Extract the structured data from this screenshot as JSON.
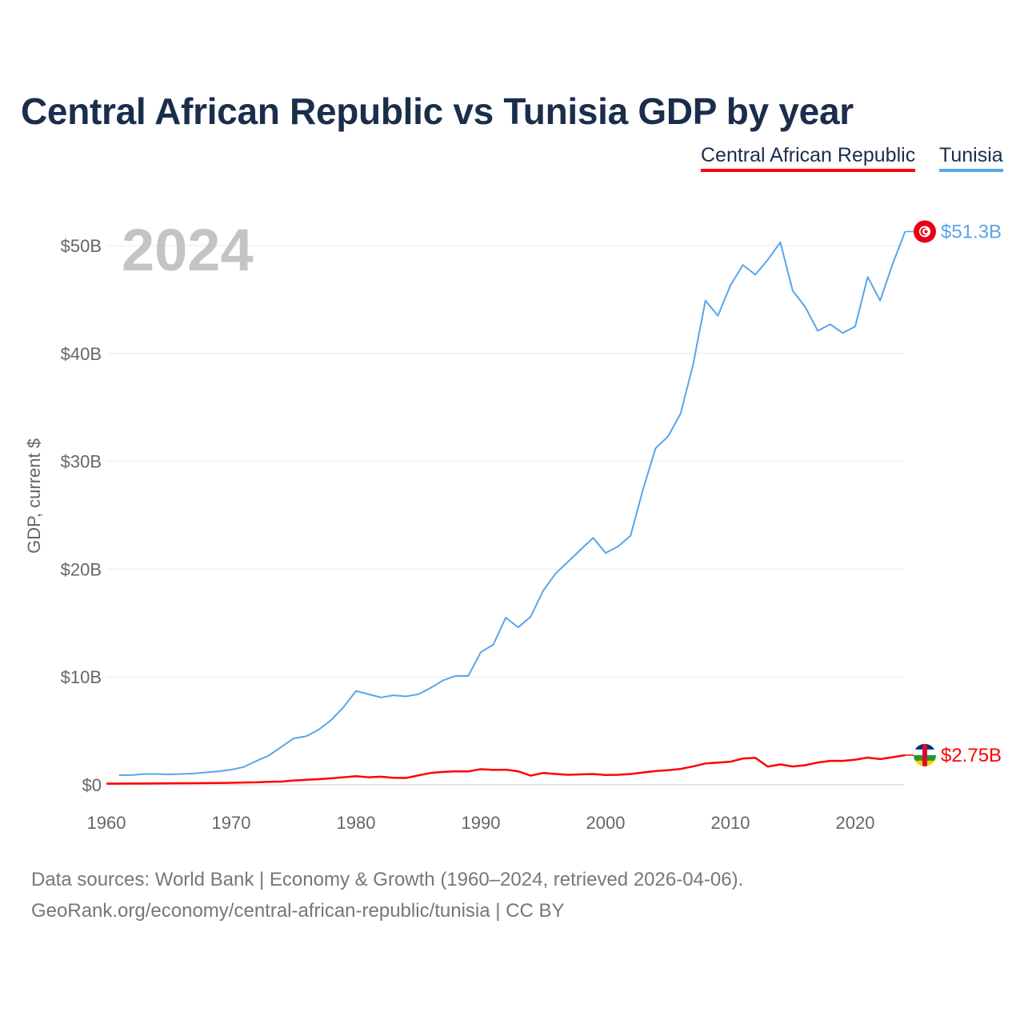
{
  "chart_data": {
    "type": "line",
    "title": "Central African Republic vs Tunisia GDP by year",
    "ylabel": "GDP, current $",
    "xlabel": "",
    "year_overlay": "2024",
    "xlim": [
      1960,
      2024
    ],
    "ylim": [
      0,
      50
    ],
    "y_unit": "billion USD",
    "grid": true,
    "legend_position": "top-right",
    "x_ticks": [
      "1960",
      "1970",
      "1980",
      "1990",
      "2000",
      "2010",
      "2020"
    ],
    "y_ticks": [
      "$0",
      "$10B",
      "$20B",
      "$30B",
      "$40B",
      "$50B"
    ],
    "series": [
      {
        "name": "Central African Republic",
        "color": "#ff0000",
        "end_label": "$2.75B",
        "flag": "central-african-republic-flag",
        "start_year": 1960,
        "values": [
          0.11,
          0.11,
          0.12,
          0.12,
          0.13,
          0.14,
          0.15,
          0.15,
          0.16,
          0.17,
          0.19,
          0.21,
          0.23,
          0.28,
          0.3,
          0.4,
          0.46,
          0.52,
          0.6,
          0.7,
          0.8,
          0.7,
          0.75,
          0.65,
          0.63,
          0.87,
          1.1,
          1.2,
          1.25,
          1.24,
          1.45,
          1.38,
          1.4,
          1.25,
          0.85,
          1.1,
          1.0,
          0.93,
          0.96,
          1.0,
          0.91,
          0.93,
          1.0,
          1.14,
          1.27,
          1.35,
          1.47,
          1.7,
          1.98,
          2.06,
          2.14,
          2.44,
          2.5,
          1.69,
          1.89,
          1.7,
          1.82,
          2.07,
          2.22,
          2.22,
          2.33,
          2.52,
          2.38,
          2.56,
          2.75
        ]
      },
      {
        "name": "Tunisia",
        "color": "#5aa5e8",
        "end_label": "$51.3B",
        "flag": "tunisia-flag",
        "start_year": 1961,
        "values": [
          0.9,
          0.9,
          1.0,
          1.0,
          0.96,
          1.0,
          1.05,
          1.15,
          1.25,
          1.4,
          1.65,
          2.2,
          2.7,
          3.5,
          4.3,
          4.5,
          5.1,
          6.0,
          7.2,
          8.7,
          8.4,
          8.1,
          8.3,
          8.2,
          8.4,
          9.0,
          9.7,
          10.1,
          10.1,
          12.3,
          13.0,
          15.5,
          14.6,
          15.6,
          18.0,
          19.6,
          20.7,
          21.8,
          22.9,
          21.5,
          22.1,
          23.1,
          27.4,
          31.2,
          32.3,
          34.4,
          38.9,
          44.9,
          43.5,
          46.3,
          48.2,
          47.3,
          48.7,
          50.3,
          45.8,
          44.3,
          42.1,
          42.7,
          41.9,
          42.5,
          47.1,
          44.9,
          48.3,
          51.3
        ]
      }
    ]
  },
  "footer": {
    "line1": "Data sources: World Bank | Economy & Growth (1960–2024, retrieved 2026-04-06).",
    "line2": "GeoRank.org/economy/central-african-republic/tunisia | CC BY"
  }
}
